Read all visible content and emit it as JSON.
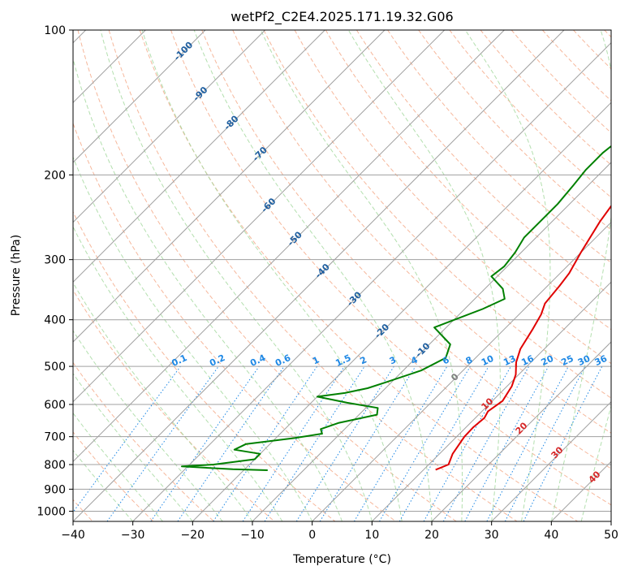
{
  "chart_data": {
    "type": "line",
    "title": "wetPf2_C2E4.2025.171.19.32.G06",
    "xlabel": "Temperature (°C)",
    "ylabel": "Pressure (hPa)",
    "xlim": [
      -40,
      50
    ],
    "ylim": [
      1050,
      100
    ],
    "y_scale": "log",
    "grid": true,
    "x_ticks": [
      "−40",
      "−30",
      "−20",
      "−10",
      "0",
      "10",
      "20",
      "30",
      "40",
      "50"
    ],
    "y_ticks": [
      {
        "p": 1000,
        "label": "1000"
      },
      {
        "p": 900,
        "label": "900"
      },
      {
        "p": 800,
        "label": "800"
      },
      {
        "p": 700,
        "label": "700"
      },
      {
        "p": 600,
        "label": "600"
      },
      {
        "p": 500,
        "label": "500"
      },
      {
        "p": 400,
        "label": "400"
      },
      {
        "p": 300,
        "label": "300"
      },
      {
        "p": 200,
        "label": "200"
      },
      {
        "p": 100,
        "label": "100"
      }
    ],
    "colors": {
      "temperature": "#e00000",
      "dewpoint": "#008000",
      "isotherm": "#a0a0a0",
      "dry_adiabat": "#f4a582",
      "moist_adiabat": "#a6d9a0",
      "mixing_ratio": "#1e88e5",
      "isotherm_label": "#1f5fa0",
      "moist_label": "#d62728",
      "zero_label": "#808080"
    },
    "series": [
      {
        "key": "temperature",
        "values": [
          [
            12.0,
            820
          ],
          [
            13.3,
            800
          ],
          [
            12.2,
            760
          ],
          [
            11.3,
            700
          ],
          [
            11.2,
            670
          ],
          [
            11.5,
            640
          ],
          [
            11.0,
            620
          ],
          [
            11.7,
            590
          ],
          [
            10.8,
            550
          ],
          [
            9.5,
            520
          ],
          [
            7.5,
            490
          ],
          [
            6.0,
            460
          ],
          [
            4.8,
            420
          ],
          [
            3.7,
            390
          ],
          [
            2.5,
            370
          ],
          [
            2.0,
            340
          ],
          [
            1.5,
            320
          ],
          [
            0.0,
            290
          ],
          [
            -2.0,
            250
          ],
          [
            -3.0,
            225
          ],
          [
            -3.0,
            210
          ],
          [
            -1.5,
            200
          ],
          [
            1.5,
            190
          ],
          [
            6.0,
            175
          ],
          [
            11.0,
            160
          ],
          [
            14.5,
            150
          ],
          [
            17.0,
            140
          ],
          [
            19.5,
            130
          ],
          [
            21.0,
            120
          ],
          [
            23.0,
            110
          ],
          [
            26.0,
            100
          ]
        ]
      },
      {
        "key": "dewpoint",
        "values": [
          [
            -16,
            822
          ],
          [
            -22,
            818
          ],
          [
            -31,
            807
          ],
          [
            -26,
            800
          ],
          [
            -20,
            780
          ],
          [
            -20,
            760
          ],
          [
            -25,
            745
          ],
          [
            -24,
            725
          ],
          [
            -17,
            705
          ],
          [
            -13,
            690
          ],
          [
            -14,
            675
          ],
          [
            -12,
            655
          ],
          [
            -7,
            630
          ],
          [
            -8,
            610
          ],
          [
            -14,
            595
          ],
          [
            -20,
            578
          ],
          [
            -16,
            568
          ],
          [
            -13,
            555
          ],
          [
            -11,
            540
          ],
          [
            -7,
            510
          ],
          [
            -5,
            480
          ],
          [
            -6.5,
            450
          ],
          [
            -12,
            415
          ],
          [
            -7,
            380
          ],
          [
            -5,
            362
          ],
          [
            -7,
            345
          ],
          [
            -11,
            325
          ],
          [
            -10.5,
            310
          ],
          [
            -11,
            290
          ],
          [
            -12,
            270
          ],
          [
            -12,
            250
          ],
          [
            -12,
            230
          ],
          [
            -12.5,
            210
          ],
          [
            -13,
            195
          ],
          [
            -13,
            180
          ],
          [
            -12.5,
            170
          ],
          [
            -13,
            155
          ],
          [
            -11,
            142
          ],
          [
            -8,
            132
          ],
          [
            -5,
            122
          ],
          [
            -2,
            110
          ],
          [
            0,
            100
          ]
        ]
      }
    ],
    "isotherm_labels": [
      "-100",
      "-90",
      "-80",
      "-70",
      "-60",
      "-50",
      "-40",
      "-30",
      "-20",
      "-10"
    ],
    "mixing_ratio_labels": [
      "0.1",
      "0.2",
      "0.4",
      "0.6",
      "1",
      "1.5",
      "2",
      "3",
      "4",
      "6",
      "8",
      "10",
      "13",
      "16",
      "20",
      "25",
      "30",
      "36"
    ],
    "moist_adiabat_labels": [
      "0",
      "10",
      "20",
      "30",
      "40"
    ]
  }
}
